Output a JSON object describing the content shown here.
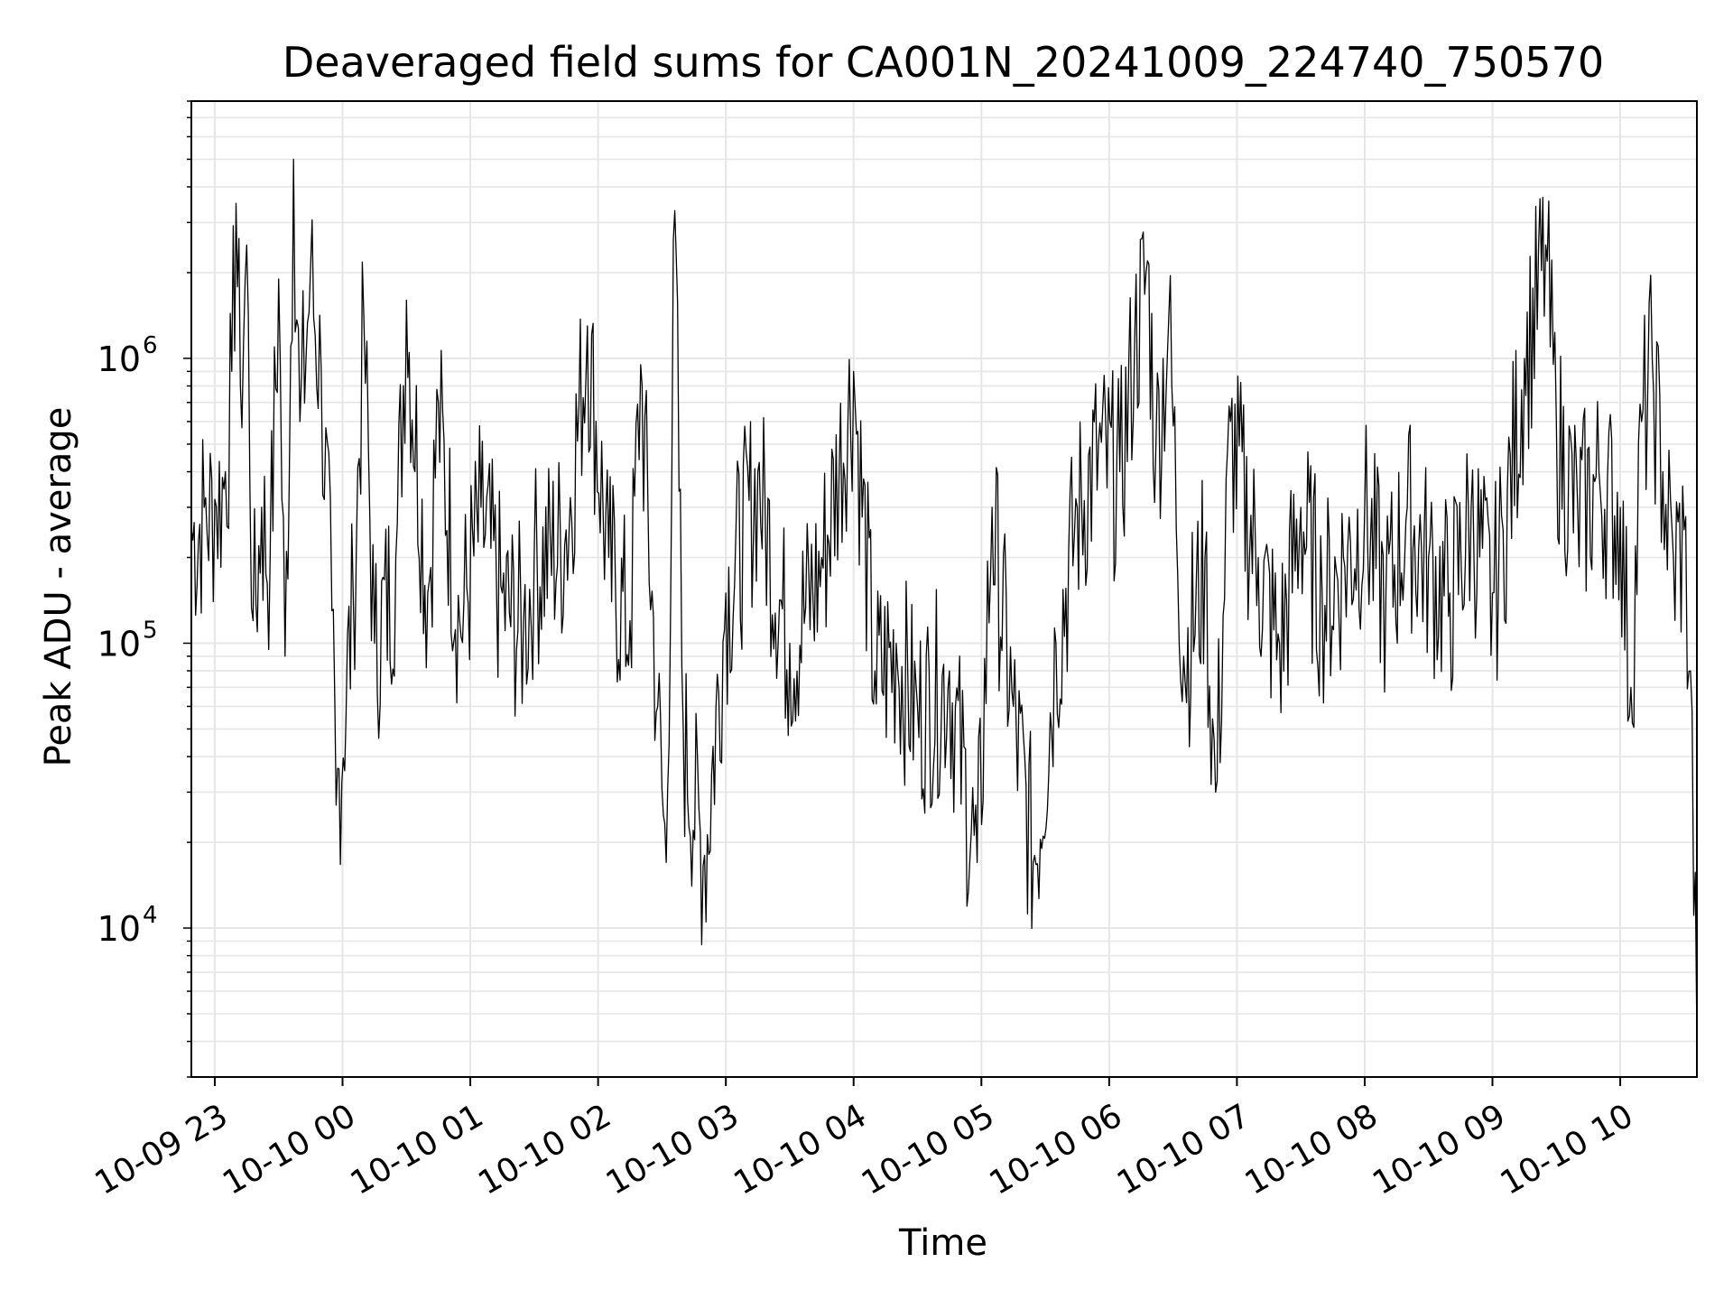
{
  "chart_data": {
    "type": "line",
    "title": "Deaveraged field sums for CA001N_20241009_224740_750570",
    "xlabel": "Time",
    "ylabel": "Peak ADU - average",
    "x_scale": "time",
    "y_scale": "log",
    "grid": true,
    "legend": "none",
    "xlim": [
      "2024-10-09 22:49",
      "2024-10-10 10:36"
    ],
    "ylim": [
      3000,
      8000000
    ],
    "x_ticks": [
      {
        "label": "10-09 23",
        "t": "2024-10-09 23:00"
      },
      {
        "label": "10-10 00",
        "t": "2024-10-10 00:00"
      },
      {
        "label": "10-10 01",
        "t": "2024-10-10 01:00"
      },
      {
        "label": "10-10 02",
        "t": "2024-10-10 02:00"
      },
      {
        "label": "10-10 03",
        "t": "2024-10-10 03:00"
      },
      {
        "label": "10-10 04",
        "t": "2024-10-10 04:00"
      },
      {
        "label": "10-10 05",
        "t": "2024-10-10 05:00"
      },
      {
        "label": "10-10 06",
        "t": "2024-10-10 06:00"
      },
      {
        "label": "10-10 07",
        "t": "2024-10-10 07:00"
      },
      {
        "label": "10-10 08",
        "t": "2024-10-10 08:00"
      },
      {
        "label": "10-10 09",
        "t": "2024-10-10 09:00"
      },
      {
        "label": "10-10 10",
        "t": "2024-10-10 10:00"
      }
    ],
    "y_ticks": [
      {
        "base": "10",
        "exp": "4",
        "value": 10000
      },
      {
        "base": "10",
        "exp": "5",
        "value": 100000
      },
      {
        "base": "10",
        "exp": "6",
        "value": 1000000
      }
    ],
    "series": [
      {
        "color": "#000000",
        "points": [
          [
            "2024-10-09 22:49",
            250000
          ],
          [
            "2024-10-09 22:55",
            300000
          ],
          [
            "2024-10-09 23:00",
            320000
          ],
          [
            "2024-10-09 23:05",
            400000
          ],
          [
            "2024-10-09 23:08",
            900000
          ],
          [
            "2024-10-09 23:10",
            3500000
          ],
          [
            "2024-10-09 23:12",
            800000
          ],
          [
            "2024-10-09 23:15",
            2500000
          ],
          [
            "2024-10-09 23:18",
            120000
          ],
          [
            "2024-10-09 23:22",
            300000
          ],
          [
            "2024-10-09 23:26",
            200000
          ],
          [
            "2024-10-09 23:30",
            1900000
          ],
          [
            "2024-10-09 23:33",
            90000
          ],
          [
            "2024-10-09 23:37",
            5000000
          ],
          [
            "2024-10-09 23:40",
            600000
          ],
          [
            "2024-10-09 23:45",
            2100000
          ],
          [
            "2024-10-09 23:50",
            900000
          ],
          [
            "2024-10-09 23:55",
            130000
          ],
          [
            "2024-10-09 23:57",
            27000
          ],
          [
            "2024-10-10 00:05",
            150000
          ],
          [
            "2024-10-10 00:10",
            1400000
          ],
          [
            "2024-10-10 00:15",
            100000
          ],
          [
            "2024-10-10 00:25",
            200000
          ],
          [
            "2024-10-10 00:30",
            1600000
          ],
          [
            "2024-10-10 00:40",
            150000
          ],
          [
            "2024-10-10 00:45",
            700000
          ],
          [
            "2024-10-10 00:55",
            120000
          ],
          [
            "2024-10-10 01:05",
            300000
          ],
          [
            "2024-10-10 01:15",
            150000
          ],
          [
            "2024-10-10 01:25",
            120000
          ],
          [
            "2024-10-10 01:30",
            200000
          ],
          [
            "2024-10-10 01:45",
            250000
          ],
          [
            "2024-10-10 01:55",
            1300000
          ],
          [
            "2024-10-10 02:05",
            200000
          ],
          [
            "2024-10-10 02:15",
            120000
          ],
          [
            "2024-10-10 02:20",
            950000
          ],
          [
            "2024-10-10 02:28",
            60000
          ],
          [
            "2024-10-10 02:32",
            17000
          ],
          [
            "2024-10-10 02:36",
            3300000
          ],
          [
            "2024-10-10 02:40",
            50000
          ],
          [
            "2024-10-10 02:50",
            18000
          ],
          [
            "2024-10-10 03:00",
            150000
          ],
          [
            "2024-10-10 03:15",
            400000
          ],
          [
            "2024-10-10 03:30",
            100000
          ],
          [
            "2024-10-10 03:45",
            200000
          ],
          [
            "2024-10-10 04:00",
            900000
          ],
          [
            "2024-10-10 04:10",
            80000
          ],
          [
            "2024-10-10 04:20",
            100000
          ],
          [
            "2024-10-10 04:30",
            60000
          ],
          [
            "2024-10-10 04:45",
            80000
          ],
          [
            "2024-10-10 04:58",
            17000
          ],
          [
            "2024-10-10 05:05",
            300000
          ],
          [
            "2024-10-10 05:15",
            60000
          ],
          [
            "2024-10-10 05:25",
            18000
          ],
          [
            "2024-10-10 05:35",
            100000
          ],
          [
            "2024-10-10 05:45",
            300000
          ],
          [
            "2024-10-10 05:55",
            500000
          ],
          [
            "2024-10-10 06:05",
            400000
          ],
          [
            "2024-10-10 06:12",
            1200000
          ],
          [
            "2024-10-10 06:18",
            2200000
          ],
          [
            "2024-10-10 06:22",
            500000
          ],
          [
            "2024-10-10 06:28",
            1400000
          ],
          [
            "2024-10-10 06:35",
            90000
          ],
          [
            "2024-10-10 06:45",
            200000
          ],
          [
            "2024-10-10 06:50",
            30000
          ],
          [
            "2024-10-10 06:57",
            600000
          ],
          [
            "2024-10-10 07:10",
            200000
          ],
          [
            "2024-10-10 07:20",
            100000
          ],
          [
            "2024-10-10 07:30",
            300000
          ],
          [
            "2024-10-10 07:40",
            150000
          ],
          [
            "2024-10-10 07:50",
            200000
          ],
          [
            "2024-10-10 08:00",
            300000
          ],
          [
            "2024-10-10 08:10",
            150000
          ],
          [
            "2024-10-10 08:20",
            300000
          ],
          [
            "2024-10-10 08:30",
            200000
          ],
          [
            "2024-10-10 08:40",
            150000
          ],
          [
            "2024-10-10 08:50",
            300000
          ],
          [
            "2024-10-10 09:00",
            150000
          ],
          [
            "2024-10-10 09:05",
            250000
          ],
          [
            "2024-10-10 09:15",
            1000000
          ],
          [
            "2024-10-10 09:25",
            2500000
          ],
          [
            "2024-10-10 09:30",
            600000
          ],
          [
            "2024-10-10 09:40",
            300000
          ],
          [
            "2024-10-10 09:50",
            400000
          ],
          [
            "2024-10-10 10:00",
            300000
          ],
          [
            "2024-10-10 10:05",
            70000
          ],
          [
            "2024-10-10 10:10",
            600000
          ],
          [
            "2024-10-10 10:15",
            1000000
          ],
          [
            "2024-10-10 10:20",
            400000
          ],
          [
            "2024-10-10 10:25",
            200000
          ],
          [
            "2024-10-10 10:30",
            250000
          ],
          [
            "2024-10-10 10:33",
            80000
          ],
          [
            "2024-10-10 10:36",
            4000
          ]
        ]
      }
    ]
  }
}
